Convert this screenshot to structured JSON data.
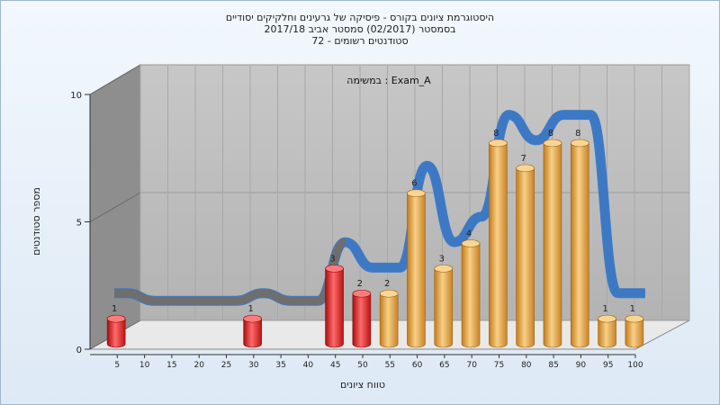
{
  "chart_data": {
    "type": "bar",
    "title_lines": [
      "היסטוגרמת ציונים בקורס - פיסיקה של גרעינים וחלקיקים יסודיים",
      "בסמסטר  (02/2017)  סמסטר אביב 2017/18",
      "סטודנטים רשומים - 72"
    ],
    "exam_label": "Exam_A : במשימה",
    "xlabel": "טווח ציונים",
    "ylabel": "מספר סטודנטים",
    "y_ticks": [
      "0",
      "5",
      "10"
    ],
    "ylim": [
      0,
      10
    ],
    "categories": [
      "5",
      "10",
      "15",
      "20",
      "25",
      "30",
      "35",
      "40",
      "45",
      "50",
      "55",
      "60",
      "65",
      "70",
      "75",
      "80",
      "85",
      "90",
      "95",
      "100"
    ],
    "values": [
      1,
      0,
      0,
      0,
      0,
      1,
      0,
      0,
      3,
      2,
      2,
      6,
      3,
      4,
      8,
      7,
      8,
      8,
      1,
      1
    ],
    "value_labels": [
      "1",
      "",
      "",
      "",
      "",
      "1",
      "",
      "",
      "3",
      "2",
      "2",
      "6",
      "3",
      "4",
      "8",
      "7",
      "8",
      "8",
      "1",
      "1"
    ],
    "colors": {
      "failing_bar": "#e02020",
      "passing_bar": "#e8a23a",
      "ribbon_high": "#3a78c8",
      "ribbon_low": "#6e6e6e",
      "back_wall": "#b9b9b9",
      "left_wall": "#8a8a8a"
    },
    "grid": true,
    "legend": "none"
  }
}
